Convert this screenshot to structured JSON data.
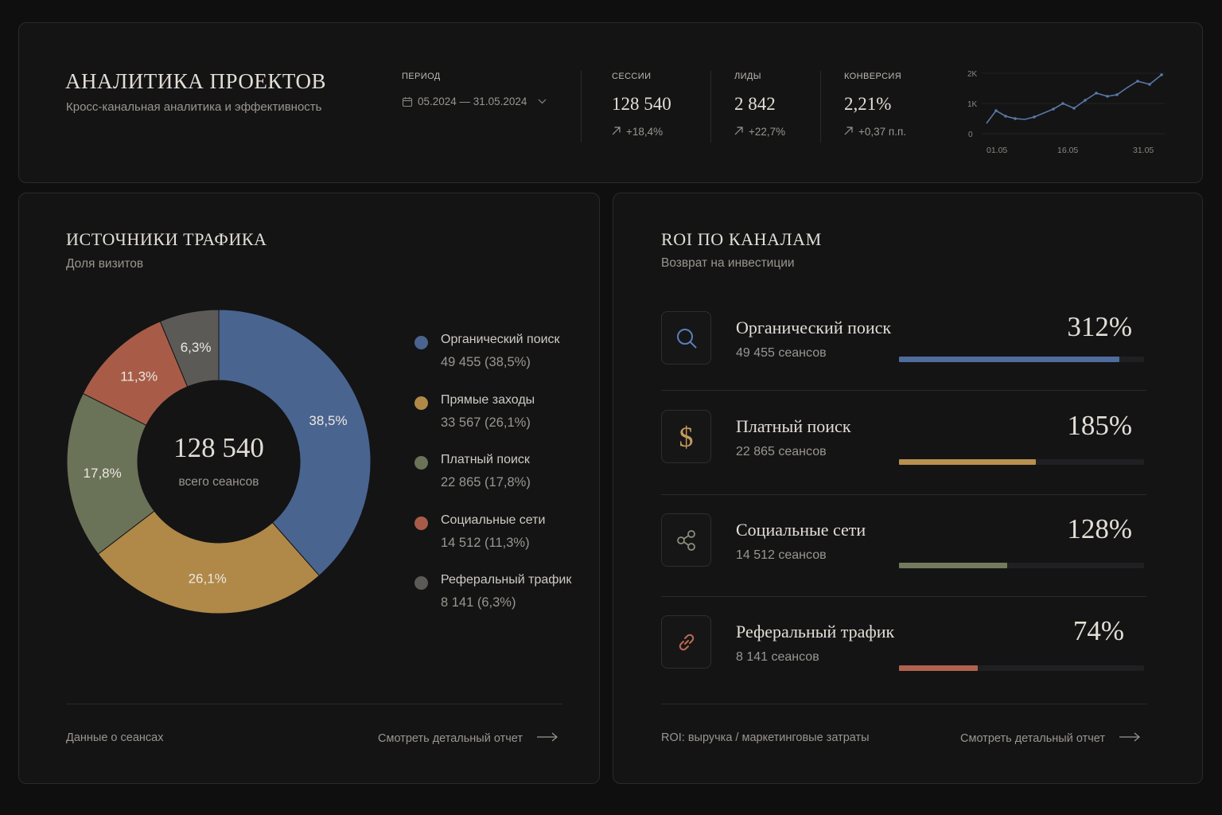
{
  "header": {
    "title": "АНАЛИТИКА ПРОЕКТОВ",
    "subtitle": "Кросс-канальная аналитика и эффективность",
    "period_label": "ПЕРИОД",
    "period_value": "05.2024 — 31.05.2024",
    "kpis": [
      {
        "label": "СЕССИИ",
        "value": "128 540",
        "delta": "+18,4%"
      },
      {
        "label": "ЛИДЫ",
        "value": "2 842",
        "delta": "+22,7%"
      },
      {
        "label": "КОНВЕРСИЯ",
        "value": "2,21%",
        "delta": "+0,37 п.п."
      }
    ],
    "sparkline": {
      "y_ticks": [
        "2K",
        "1K",
        "0"
      ],
      "x_ticks": [
        "01.05",
        "16.05",
        "31.05"
      ],
      "color": "#5a78a8"
    }
  },
  "traffic": {
    "title": "ИСТОЧНИКИ ТРАФИКА",
    "subtitle": "Доля визитов",
    "center_value": "128 540",
    "center_label": "всего сеансов",
    "footer_left": "Данные о сеансах",
    "footer_link": "Смотреть детальный отчет",
    "legend": [
      {
        "name": "Органический поиск",
        "value": "49 455 (38,5%)",
        "color": "#4a6490"
      },
      {
        "name": "Прямые заходы",
        "value": "33 567 (26,1%)",
        "color": "#b08848"
      },
      {
        "name": "Платный поиск",
        "value": "22 865 (17,8%)",
        "color": "#6a7258"
      },
      {
        "name": "Социальные сети",
        "value": "14 512 (11,3%)",
        "color": "#a85c48"
      },
      {
        "name": "Реферальный трафик",
        "value": "8 141 (6,3%)",
        "color": "#5c5a57"
      }
    ]
  },
  "roi": {
    "title": "ROI ПО КАНАЛАМ",
    "subtitle": "Возврат на инвестиции",
    "footer_left": "ROI: выручка / маркетинговые затраты",
    "footer_link": "Смотреть детальный отчет",
    "rows": [
      {
        "name": "Органический поиск",
        "sessions": "49 455 сеансов",
        "pct": "312%",
        "fill": 0.9,
        "color": "#4f6c9c",
        "icon": "search-icon",
        "icon_color": "#5a7eb8"
      },
      {
        "name": "Платный поиск",
        "sessions": "22 865 сеансов",
        "pct": "185%",
        "fill": 0.56,
        "color": "#b89050",
        "icon": "dollar-icon",
        "icon_color": "#c49a5a"
      },
      {
        "name": "Социальные сети",
        "sessions": "14 512 сеансов",
        "pct": "128%",
        "fill": 0.44,
        "color": "#737a5e",
        "icon": "share-icon",
        "icon_color": "#8a8e7a"
      },
      {
        "name": "Реферальный трафик",
        "sessions": "8 141 сеансов",
        "pct": "74%",
        "fill": 0.32,
        "color": "#b0624e",
        "icon": "link-icon",
        "icon_color": "#c06a52"
      }
    ]
  },
  "chart_data": {
    "type": "pie",
    "categories": [
      "Органический поиск",
      "Прямые заходы",
      "Платный поиск",
      "Социальные сети",
      "Реферальный трафик"
    ],
    "values": [
      38.5,
      26.1,
      17.8,
      11.3,
      6.3
    ],
    "labels": [
      "38,5%",
      "26,1%",
      "17,8%",
      "11,3%",
      "6,3%"
    ],
    "colors": [
      "#4a6490",
      "#b08848",
      "#6a7258",
      "#a85c48",
      "#5c5a57"
    ]
  }
}
